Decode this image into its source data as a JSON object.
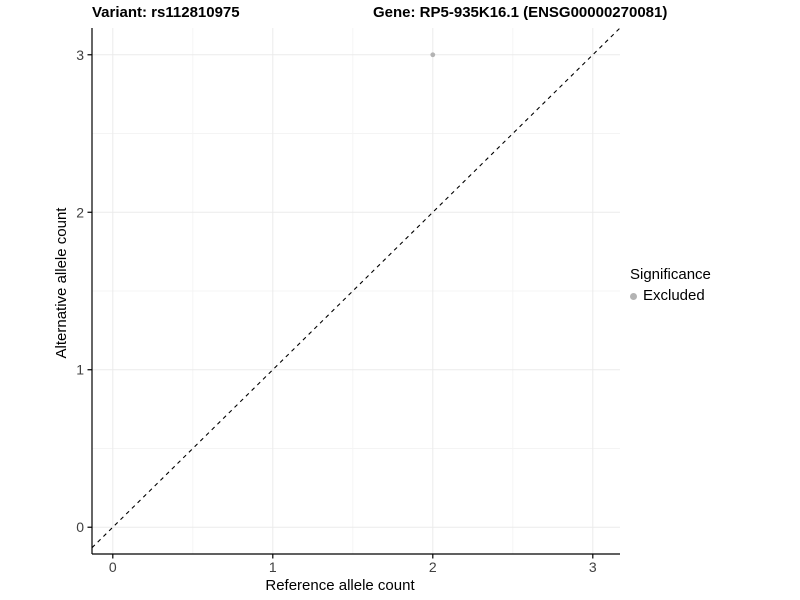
{
  "titles": {
    "variant": "Variant: rs112810975",
    "gene": "Gene: RP5-935K16.1 (ENSG00000270081)"
  },
  "chart_data": {
    "type": "scatter",
    "title_left": "Variant: rs112810975",
    "title_right": "Gene: RP5-935K16.1 (ENSG00000270081)",
    "xlabel": "Reference allele count",
    "ylabel": "Alternative allele count",
    "x_ticks": [
      0,
      1,
      2,
      3
    ],
    "y_ticks": [
      0,
      1,
      2,
      3
    ],
    "x_minor_ticks": [
      0.5,
      1.5,
      2.5
    ],
    "y_minor_ticks": [
      0.5,
      1.5,
      2.5
    ],
    "xlim": [
      -0.13,
      3.17
    ],
    "ylim": [
      -0.17,
      3.17
    ],
    "grid": "on",
    "points": [
      {
        "x": 2,
        "y": 3,
        "series": "Excluded"
      }
    ],
    "reference_line": {
      "kind": "abline",
      "slope": 1,
      "intercept": 0,
      "style": "dashed",
      "color": "#000000"
    },
    "legend": {
      "title": "Significance",
      "position": "right",
      "items": [
        {
          "label": "Excluded",
          "color": "#b3b3b3"
        }
      ]
    },
    "colors": {
      "point": "#b3b3b3",
      "grid_major": "#ebebeb",
      "grid_minor": "#f4f4f4",
      "axis_line": "#000000",
      "tick_label": "#404040"
    }
  }
}
